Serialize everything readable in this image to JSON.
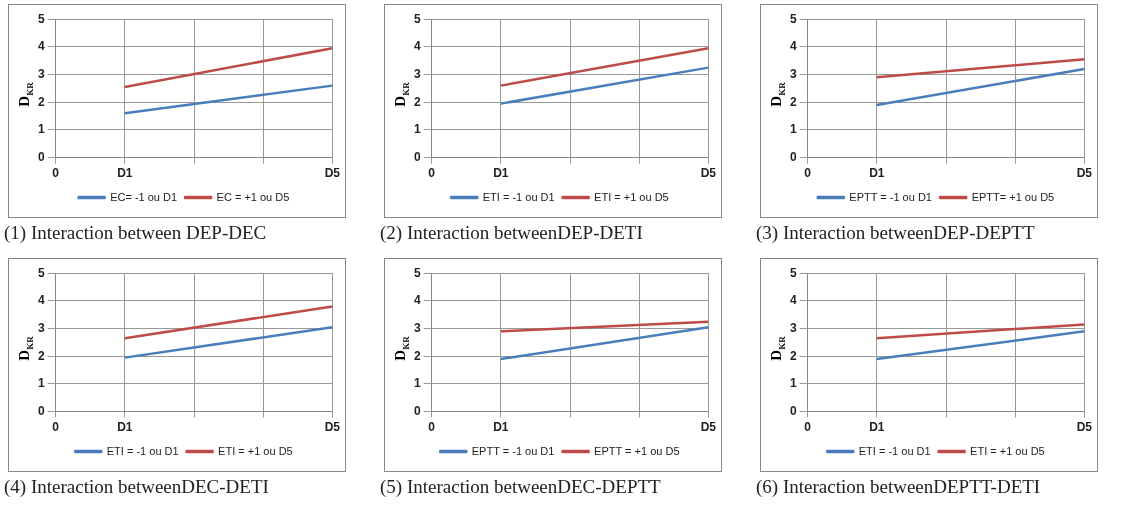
{
  "chart_data": [
    {
      "type": "line",
      "title": "(1) Interaction between DEP-DEC",
      "ylabel": "D$_{KR}$",
      "categories": [
        "0",
        "D1",
        null,
        null,
        "D5"
      ],
      "ylim": [
        0,
        5
      ],
      "yticks": [
        0,
        1,
        2,
        3,
        4,
        5
      ],
      "grid": true,
      "legend": "bottom",
      "marker": "none",
      "line_style": "solid",
      "series": [
        {
          "name": "EC= -1 ou D1",
          "color": "#4a7ebb",
          "x": [
            "D1",
            "D5"
          ],
          "values": [
            1.6,
            2.6
          ]
        },
        {
          "name": "EC = +1 ou D5",
          "color": "#be4b48",
          "x": [
            "D1",
            "D5"
          ],
          "values": [
            2.55,
            3.95
          ]
        }
      ]
    },
    {
      "type": "line",
      "title": "(2) Interaction betweenDEP-DETI",
      "ylabel": "D$_{KR}$",
      "categories": [
        "0",
        "D1",
        null,
        null,
        "D5"
      ],
      "ylim": [
        0,
        5
      ],
      "yticks": [
        0,
        1,
        2,
        3,
        4,
        5
      ],
      "grid": true,
      "legend": "bottom",
      "marker": "none",
      "line_style": "solid",
      "series": [
        {
          "name": "ETI = -1 ou D1",
          "color": "#4a7ebb",
          "x": [
            "D1",
            "D5"
          ],
          "values": [
            1.95,
            3.25
          ]
        },
        {
          "name": "ETI = +1 ou D5",
          "color": "#be4b48",
          "x": [
            "D1",
            "D5"
          ],
          "values": [
            2.6,
            3.95
          ]
        }
      ]
    },
    {
      "type": "line",
      "title": "(3) Interaction betweenDEP-DEPTT",
      "ylabel": "D$_{KR}$",
      "categories": [
        "0",
        "D1",
        null,
        null,
        "D5"
      ],
      "ylim": [
        0,
        5
      ],
      "yticks": [
        0,
        1,
        2,
        3,
        4,
        5
      ],
      "grid": true,
      "legend": "bottom",
      "marker": "none",
      "line_style": "solid",
      "series": [
        {
          "name": "EPTT = -1 ou D1",
          "color": "#4a7ebb",
          "x": [
            "D1",
            "D5"
          ],
          "values": [
            1.9,
            3.2
          ]
        },
        {
          "name": "EPTT= +1 ou D5",
          "color": "#be4b48",
          "x": [
            "D1",
            "D5"
          ],
          "values": [
            2.9,
            3.55
          ]
        }
      ]
    },
    {
      "type": "line",
      "title": "(4) Interaction betweenDEC-DETI",
      "ylabel": "D$_{KR}$",
      "categories": [
        "0",
        "D1",
        null,
        null,
        "D5"
      ],
      "ylim": [
        0,
        5
      ],
      "yticks": [
        0,
        1,
        2,
        3,
        4,
        5
      ],
      "grid": true,
      "legend": "bottom",
      "marker": "none",
      "line_style": "solid",
      "series": [
        {
          "name": "ETI = -1 ou D1",
          "color": "#4a7ebb",
          "x": [
            "D1",
            "D5"
          ],
          "values": [
            1.95,
            3.05
          ]
        },
        {
          "name": "ETI = +1 ou D5",
          "color": "#be4b48",
          "x": [
            "D1",
            "D5"
          ],
          "values": [
            2.65,
            3.8
          ]
        }
      ]
    },
    {
      "type": "line",
      "title": "(5) Interaction betweenDEC-DEPTT",
      "ylabel": "D$_{KR}$",
      "categories": [
        "0",
        "D1",
        null,
        null,
        "D5"
      ],
      "ylim": [
        0,
        5
      ],
      "yticks": [
        0,
        1,
        2,
        3,
        4,
        5
      ],
      "grid": true,
      "legend": "bottom",
      "marker": "none",
      "line_style": "solid",
      "series": [
        {
          "name": "EPTT = -1 ou D1",
          "color": "#4a7ebb",
          "x": [
            "D1",
            "D5"
          ],
          "values": [
            1.9,
            3.05
          ]
        },
        {
          "name": "EPTT = +1 ou D5",
          "color": "#be4b48",
          "x": [
            "D1",
            "D5"
          ],
          "values": [
            2.9,
            3.25
          ]
        }
      ]
    },
    {
      "type": "line",
      "title": "(6) Interaction betweenDEPTT-DETI",
      "ylabel": "D$_{KR}$",
      "categories": [
        "0",
        "D1",
        null,
        null,
        "D5"
      ],
      "ylim": [
        0,
        5
      ],
      "yticks": [
        0,
        1,
        2,
        3,
        4,
        5
      ],
      "grid": true,
      "legend": "bottom",
      "marker": "none",
      "line_style": "solid",
      "series": [
        {
          "name": "ETI = -1 ou D1",
          "color": "#4a7ebb",
          "x": [
            "D1",
            "D5"
          ],
          "values": [
            1.9,
            2.9
          ]
        },
        {
          "name": "ETI = +1 ou D5",
          "color": "#be4b48",
          "x": [
            "D1",
            "D5"
          ],
          "values": [
            2.65,
            3.15
          ]
        }
      ]
    }
  ]
}
